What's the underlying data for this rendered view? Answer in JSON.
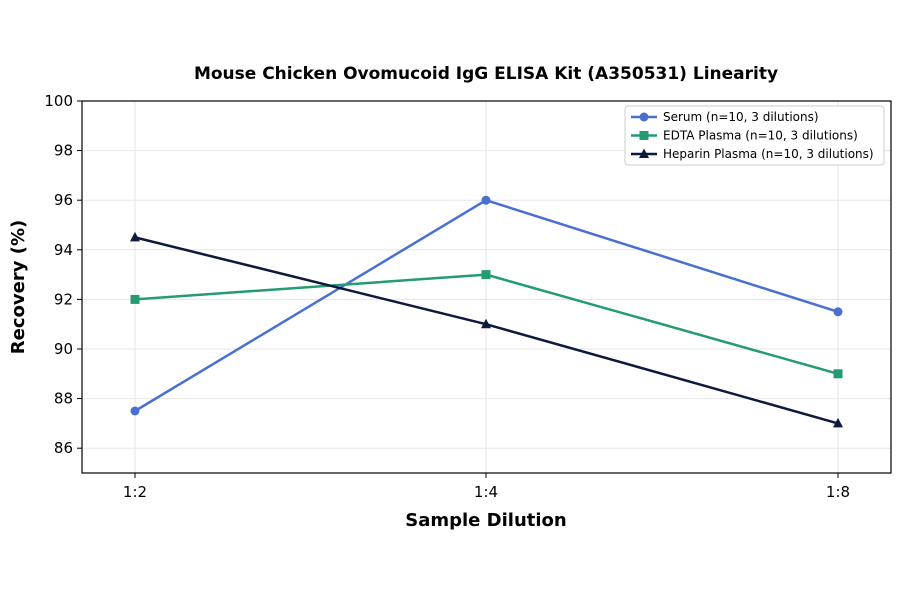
{
  "chart_data": {
    "type": "line",
    "title": "Mouse Chicken Ovomucoid IgG ELISA Kit (A350531) Linearity",
    "xlabel": "Sample Dilution",
    "ylabel": "Recovery (%)",
    "categories": [
      "1:2",
      "1:4",
      "1:8"
    ],
    "ylim": [
      85,
      100
    ],
    "yticks": [
      86,
      88,
      90,
      92,
      94,
      96,
      98,
      100
    ],
    "grid": true,
    "legend_position": "top-right",
    "series": [
      {
        "name": "Serum (n=10, 3 dilutions)",
        "values": [
          87.5,
          96,
          91.5
        ],
        "color": "#4a6fd1",
        "marker": "circle"
      },
      {
        "name": "EDTA Plasma (n=10, 3 dilutions)",
        "values": [
          92,
          93,
          89
        ],
        "color": "#239b74",
        "marker": "square"
      },
      {
        "name": "Heparin Plasma (n=10, 3 dilutions)",
        "values": [
          94.5,
          91,
          87
        ],
        "color": "#0c1a3d",
        "marker": "triangle"
      }
    ]
  }
}
